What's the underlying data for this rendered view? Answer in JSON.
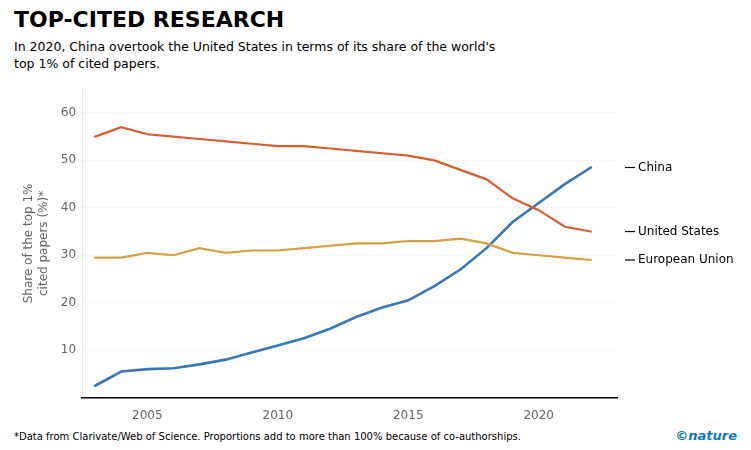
{
  "chart_data": {
    "type": "line",
    "title": "TOP-CITED RESEARCH",
    "subtitle": "In 2020, China overtook the United States in terms of its share of the world's\ntop 1% of cited papers.",
    "footnote": "*Data from Clarivate/Web of Science. Proportions add to more than 100% because of co-authorships.",
    "annotations": [
      {
        "text": "©nature",
        "color": "#0a7abf"
      }
    ],
    "ylabel": "Share of the top 1%\ncited papers (%)*",
    "x": [
      2003,
      2004,
      2005,
      2006,
      2007,
      2008,
      2009,
      2010,
      2011,
      2012,
      2013,
      2014,
      2015,
      2016,
      2017,
      2018,
      2019,
      2020,
      2021,
      2022
    ],
    "series": [
      {
        "name": "United States",
        "color": "#d45f32",
        "values": [
          55.0,
          57.0,
          55.5,
          55.0,
          54.5,
          54.0,
          53.5,
          53.0,
          53.0,
          52.5,
          52.0,
          51.5,
          51.0,
          50.0,
          48.0,
          46.0,
          42.0,
          39.5,
          36.0,
          35.0
        ]
      },
      {
        "name": "European Union",
        "color": "#d4a044",
        "values": [
          29.5,
          29.5,
          30.5,
          30.0,
          31.5,
          30.5,
          31.0,
          31.0,
          31.5,
          32.0,
          32.5,
          32.5,
          33.0,
          33.0,
          33.5,
          32.5,
          30.5,
          30.0,
          29.5,
          29.0
        ]
      },
      {
        "name": "China",
        "color": "#3a77b8",
        "values": [
          2.5,
          5.5,
          6.0,
          6.2,
          7.0,
          8.0,
          9.5,
          11.0,
          12.5,
          14.5,
          17.0,
          19.0,
          20.5,
          23.5,
          27.0,
          31.5,
          37.0,
          41.0,
          45.0,
          48.5
        ]
      }
    ],
    "xlim": [
      2002.5,
      2023.0
    ],
    "xticks": [
      2005,
      2010,
      2015,
      2020
    ],
    "ylim": [
      0,
      65
    ],
    "yticks": [
      10,
      20,
      30,
      40,
      50,
      60
    ],
    "grid": true
  }
}
